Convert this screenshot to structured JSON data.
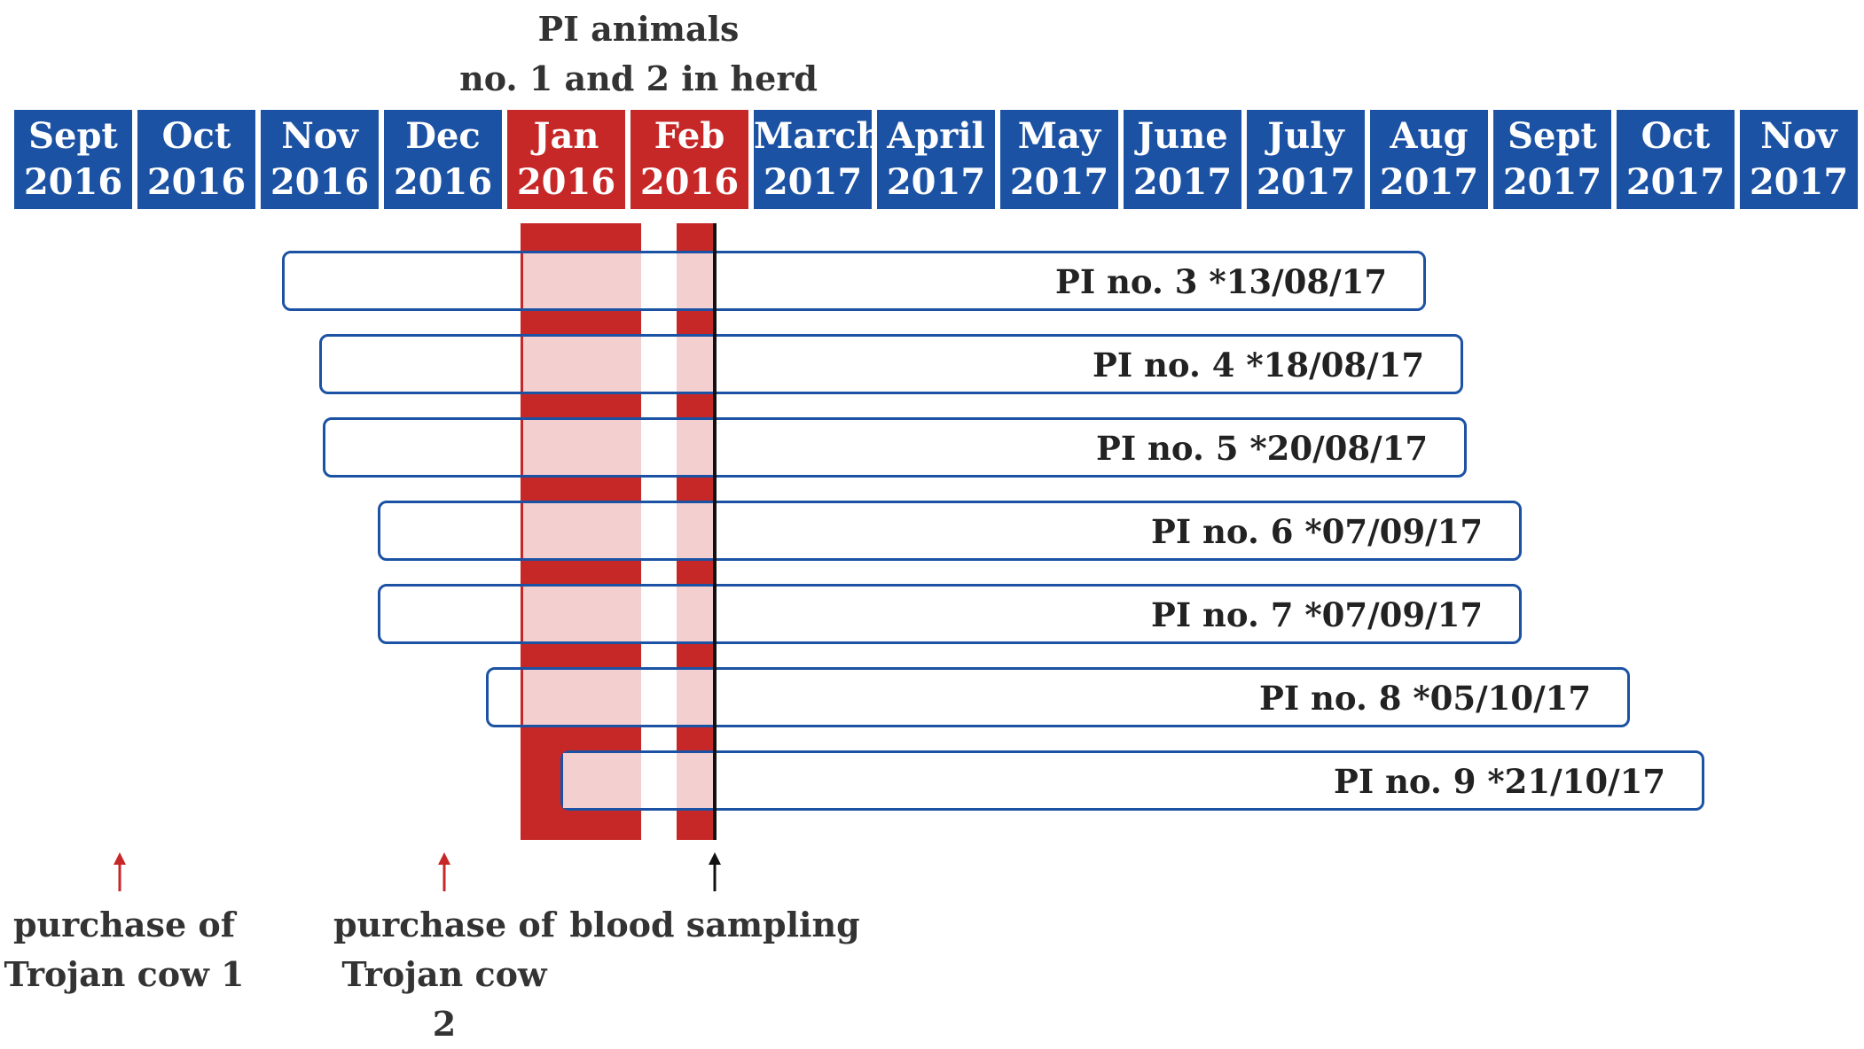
{
  "title": {
    "line1": "PI animals",
    "line2": "no. 1 and 2 in herd"
  },
  "months": [
    {
      "month": "Sept",
      "year": "2016",
      "highlight": false
    },
    {
      "month": "Oct",
      "year": "2016",
      "highlight": false
    },
    {
      "month": "Nov",
      "year": "2016",
      "highlight": false
    },
    {
      "month": "Dec",
      "year": "2016",
      "highlight": false
    },
    {
      "month": "Jan",
      "year": "2016",
      "highlight": true
    },
    {
      "month": "Feb",
      "year": "2016",
      "highlight": true
    },
    {
      "month": "March",
      "year": "2017",
      "highlight": false
    },
    {
      "month": "April",
      "year": "2017",
      "highlight": false
    },
    {
      "month": "May",
      "year": "2017",
      "highlight": false
    },
    {
      "month": "June",
      "year": "2017",
      "highlight": false
    },
    {
      "month": "July",
      "year": "2017",
      "highlight": false
    },
    {
      "month": "Aug",
      "year": "2017",
      "highlight": false
    },
    {
      "month": "Sept",
      "year": "2017",
      "highlight": false
    },
    {
      "month": "Oct",
      "year": "2017",
      "highlight": false
    },
    {
      "month": "Nov",
      "year": "2017",
      "highlight": false
    }
  ],
  "pi_animals": [
    {
      "label": "PI no. 3 *13/08/17"
    },
    {
      "label": "PI no. 4 *18/08/17"
    },
    {
      "label": "PI no. 5 *20/08/17"
    },
    {
      "label": "PI no. 6 *07/09/17"
    },
    {
      "label": "PI no. 7 *07/09/17"
    },
    {
      "label": "PI no. 8 *05/10/17"
    },
    {
      "label": "PI no. 9 *21/10/17"
    }
  ],
  "events": {
    "purchase1_line1": "purchase of",
    "purchase1_line2": "Trojan cow 1",
    "purchase2_line1": "purchase of",
    "purchase2_line2": "Trojan cow 2",
    "sampling": "blood sampling"
  },
  "colors": {
    "blue": "#1c52a3",
    "red": "#c62828",
    "pink": "#f4cfcf",
    "black": "#111111"
  }
}
